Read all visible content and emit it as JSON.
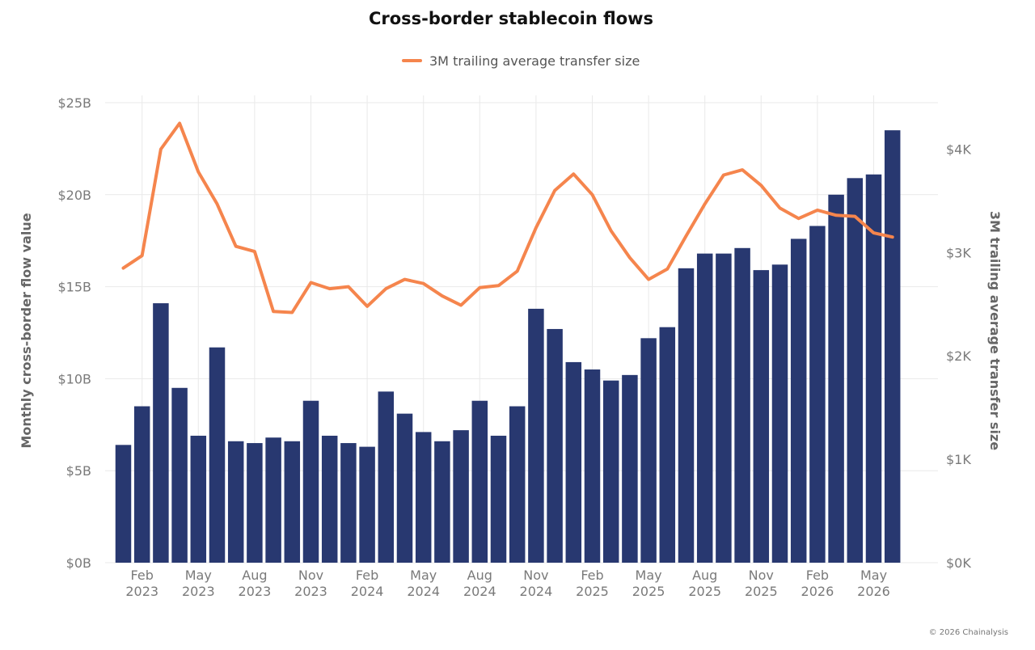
{
  "chart_data": {
    "type": "bar",
    "title": "Cross-border stablecoin flows",
    "credit": "© 2026 Chainalysis",
    "legend": {
      "placement": "top-center"
    },
    "y_left": {
      "label": "Monthly cross-border flow value",
      "range": [
        0,
        25
      ],
      "ticks": [
        0,
        5,
        10,
        15,
        20,
        25
      ],
      "tick_labels": [
        "$0B",
        "$5B",
        "$10B",
        "$15B",
        "$20B",
        "$25B"
      ]
    },
    "y_right": {
      "label": "3M trailing average transfer size",
      "range": [
        0,
        4520
      ],
      "ticks": [
        0,
        1000,
        2000,
        3000,
        4000
      ],
      "tick_labels": [
        "$0K",
        "$1K",
        "$2K",
        "$3K",
        "$4K"
      ]
    },
    "x_ticks": [
      {
        "index": 1,
        "month": "Feb",
        "year": "2023"
      },
      {
        "index": 4,
        "month": "May",
        "year": "2023"
      },
      {
        "index": 7,
        "month": "Aug",
        "year": "2023"
      },
      {
        "index": 10,
        "month": "Nov",
        "year": "2023"
      },
      {
        "index": 13,
        "month": "Feb",
        "year": "2024"
      },
      {
        "index": 16,
        "month": "May",
        "year": "2024"
      },
      {
        "index": 19,
        "month": "Aug",
        "year": "2024"
      },
      {
        "index": 22,
        "month": "Nov",
        "year": "2024"
      },
      {
        "index": 25,
        "month": "Feb",
        "year": "2025"
      },
      {
        "index": 28,
        "month": "May",
        "year": "2025"
      },
      {
        "index": 31,
        "month": "Aug",
        "year": "2025"
      },
      {
        "index": 34,
        "month": "Nov",
        "year": "2025"
      },
      {
        "index": 37,
        "month": "Feb",
        "year": "2026"
      },
      {
        "index": 40,
        "month": "May",
        "year": "2026"
      }
    ],
    "months": [
      "2023-01",
      "2023-02",
      "2023-03",
      "2023-04",
      "2023-05",
      "2023-06",
      "2023-07",
      "2023-08",
      "2023-09",
      "2023-10",
      "2023-11",
      "2023-12",
      "2024-01",
      "2024-02",
      "2024-03",
      "2024-04",
      "2024-05",
      "2024-06",
      "2024-07",
      "2024-08",
      "2024-09",
      "2024-10",
      "2024-11",
      "2024-12",
      "2025-01",
      "2025-02",
      "2025-03",
      "2025-04",
      "2025-05",
      "2025-06",
      "2025-07",
      "2025-08",
      "2025-09",
      "2025-10",
      "2025-11",
      "2025-12",
      "2026-01",
      "2026-02",
      "2026-03",
      "2026-04",
      "2026-05",
      "2026-06"
    ],
    "series": [
      {
        "kind": "bar",
        "axis": "left",
        "color": "#283870",
        "values": [
          6.4,
          8.5,
          14.1,
          9.5,
          6.9,
          11.7,
          6.6,
          6.5,
          6.8,
          6.6,
          8.8,
          6.9,
          6.5,
          6.3,
          9.3,
          8.1,
          7.1,
          6.6,
          7.2,
          8.8,
          6.9,
          8.5,
          13.8,
          12.7,
          10.9,
          10.5,
          9.9,
          10.2,
          12.2,
          12.8,
          16.0,
          16.8,
          16.8,
          17.1,
          15.9,
          16.2,
          17.6,
          18.3,
          20.0,
          20.9,
          21.1,
          23.5
        ]
      },
      {
        "kind": "line",
        "axis": "right",
        "name": "3M trailing average transfer size",
        "color": "#f5854d",
        "values": [
          2850,
          2970,
          4000,
          4250,
          3780,
          3470,
          3060,
          3010,
          2430,
          2420,
          2710,
          2650,
          2670,
          2480,
          2650,
          2740,
          2700,
          2580,
          2490,
          2660,
          2680,
          2820,
          3240,
          3600,
          3760,
          3560,
          3210,
          2950,
          2740,
          2840,
          3160,
          3470,
          3750,
          3800,
          3650,
          3430,
          3330,
          3410,
          3360,
          3350,
          3190,
          3150
        ]
      }
    ]
  }
}
